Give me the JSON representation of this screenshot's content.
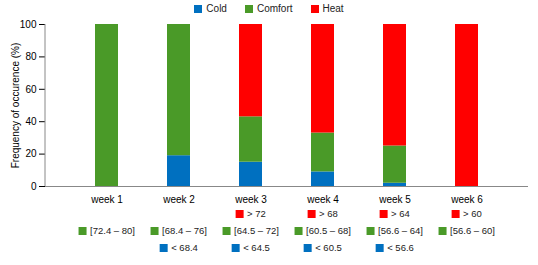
{
  "chart_data": {
    "type": "bar",
    "stacked": true,
    "legend": "top",
    "ylabel": "Frequency of occurence (%)",
    "categories": [
      "week 1",
      "week 2",
      "week 3",
      "week 4",
      "week 5",
      "week 6"
    ],
    "ylim": [
      0,
      100
    ],
    "yticks": [
      0,
      20,
      40,
      60,
      80,
      100
    ],
    "series": [
      {
        "name": "Cold",
        "color": "#0070c0",
        "values": [
          0,
          19,
          15,
          9,
          2,
          0
        ],
        "range_labels": [
          null,
          "< 68.4",
          "< 64.5",
          "< 60.5",
          "< 56.6",
          null
        ]
      },
      {
        "name": "Comfort",
        "color": "#4a9a28",
        "values": [
          100,
          81,
          28,
          24,
          23,
          0
        ],
        "range_labels": [
          "[72.4 – 80]",
          "[68.4 – 76]",
          "[64.5 – 72]",
          "[60.5 – 68]",
          "[56.6 – 64]",
          "[56.6 – 60]"
        ]
      },
      {
        "name": "Heat",
        "color": "#ff0000",
        "values": [
          0,
          0,
          57,
          67,
          75,
          100
        ],
        "range_labels": [
          null,
          null,
          "> 72",
          "> 68",
          "> 64",
          "> 60"
        ]
      }
    ]
  }
}
